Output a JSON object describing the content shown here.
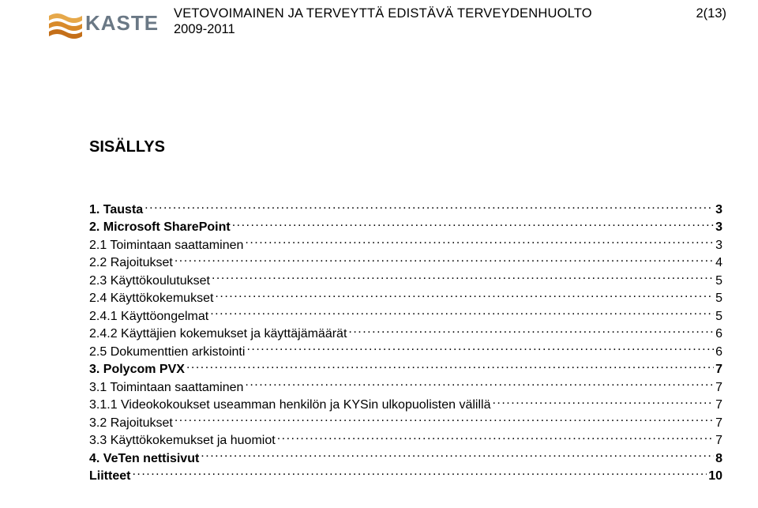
{
  "header": {
    "title": "VETOVOIMAINEN JA TERVEYTTÄ EDISTÄVÄ TERVEYDENHUOLTO",
    "year": "2009-2011",
    "page": "2(13)"
  },
  "logo": {
    "text": "KASTE",
    "wave_colors": [
      "#e6a84a",
      "#d88a2a",
      "#c46f19"
    ],
    "text_color": "#6a7885"
  },
  "toc_heading": "SISÄLLYS",
  "toc": [
    {
      "label": "1. Tausta",
      "page": "3",
      "bold": true,
      "indent": 0
    },
    {
      "label": "2. Microsoft SharePoint",
      "page": "3",
      "bold": true,
      "indent": 0
    },
    {
      "label": "2.1 Toimintaan saattaminen",
      "page": "3",
      "bold": false,
      "indent": 1
    },
    {
      "label": "2.2 Rajoitukset",
      "page": "4",
      "bold": false,
      "indent": 1
    },
    {
      "label": "2.3 Käyttökoulutukset",
      "page": "5",
      "bold": false,
      "indent": 1
    },
    {
      "label": "2.4 Käyttökokemukset",
      "page": "5",
      "bold": false,
      "indent": 1
    },
    {
      "label": "2.4.1 Käyttöongelmat",
      "page": "5",
      "bold": false,
      "indent": 2
    },
    {
      "label": "2.4.2 Käyttäjien kokemukset ja käyttäjämäärät",
      "page": "6",
      "bold": false,
      "indent": 2
    },
    {
      "label": "2.5 Dokumenttien arkistointi",
      "page": "6",
      "bold": false,
      "indent": 1
    },
    {
      "label": "3. Polycom PVX",
      "page": "7",
      "bold": true,
      "indent": 0
    },
    {
      "label": "3.1 Toimintaan saattaminen",
      "page": "7",
      "bold": false,
      "indent": 1
    },
    {
      "label": "3.1.1 Videokokoukset useamman henkilön ja KYSin ulkopuolisten välillä",
      "page": "7",
      "bold": false,
      "indent": 2
    },
    {
      "label": "3.2 Rajoitukset",
      "page": "7",
      "bold": false,
      "indent": 1
    },
    {
      "label": "3.3 Käyttökokemukset ja huomiot",
      "page": "7",
      "bold": false,
      "indent": 1
    },
    {
      "label": "4. VeTen nettisivut",
      "page": "8",
      "bold": true,
      "indent": 0
    },
    {
      "label": "Liitteet",
      "page": "10",
      "bold": true,
      "indent": 0
    }
  ]
}
